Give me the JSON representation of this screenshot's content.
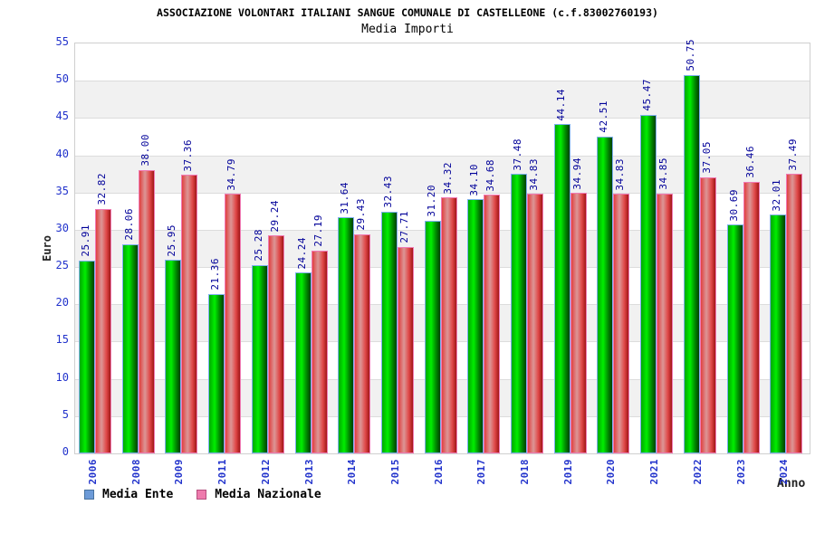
{
  "header": {
    "title": "ASSOCIAZIONE VOLONTARI ITALIANI SANGUE COMUNALE DI CASTELLEONE (c.f.83002760193)",
    "subtitle": "Media Importi"
  },
  "chart_data": {
    "type": "bar",
    "title": "Media Importi",
    "xlabel": "Anno",
    "ylabel": "Euro",
    "ylim": [
      0,
      55
    ],
    "ytick_step": 5,
    "yticks": [
      0,
      5,
      10,
      15,
      20,
      25,
      30,
      35,
      40,
      45,
      50,
      55
    ],
    "grid": "horizontal alternating bands",
    "legend_position": "bottom-left",
    "value_labels": "rotated 90deg above bars, 2 decimals",
    "categories": [
      "2006",
      "2008",
      "2009",
      "2011",
      "2012",
      "2013",
      "2014",
      "2015",
      "2016",
      "2017",
      "2018",
      "2019",
      "2020",
      "2021",
      "2022",
      "2023",
      "2024"
    ],
    "series": [
      {
        "name": "Media Ente",
        "values": [
          25.91,
          28.06,
          25.95,
          21.36,
          25.28,
          24.24,
          31.64,
          32.43,
          31.2,
          34.1,
          37.48,
          44.14,
          42.51,
          45.47,
          50.75,
          30.69,
          32.01
        ],
        "fill_gradient": [
          "#00a800",
          "#00ee00",
          "#008800",
          "#003f00"
        ],
        "border_color": "#7fb0f0",
        "legend_color": "#6d9bd8"
      },
      {
        "name": "Media Nazionale",
        "values": [
          32.82,
          38.0,
          37.36,
          34.79,
          29.24,
          27.19,
          29.43,
          27.71,
          34.32,
          34.68,
          34.83,
          34.94,
          34.83,
          34.85,
          37.05,
          36.46,
          37.49
        ],
        "fill_gradient": [
          "#e04040",
          "#dc9696",
          "#e04848",
          "#a01616"
        ],
        "border_color": "#f07ab4",
        "legend_color": "#ee7bad"
      }
    ]
  },
  "colors": {
    "tick_label": "#2233cc",
    "value_label": "#000099",
    "band_gray": "#f1f1f1",
    "band_white": "#ffffff",
    "plot_border": "#cfcfcf",
    "grid_line": "#dcdcdc"
  }
}
